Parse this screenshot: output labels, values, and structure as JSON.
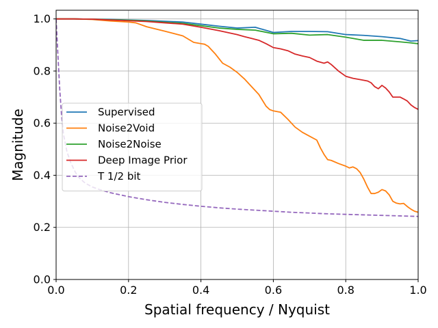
{
  "chart_data": {
    "type": "line",
    "title": "",
    "xlabel": "Spatial frequency / Nyquist",
    "ylabel": "Magnitude",
    "xlim": [
      0,
      1
    ],
    "ylim": [
      0,
      1.0333
    ],
    "xticks": [
      0,
      0.2,
      0.4,
      0.6,
      0.8,
      1.0
    ],
    "xtick_labels": [
      "0.0",
      "0.2",
      "0.4",
      "0.6",
      "0.8",
      "1.0"
    ],
    "yticks": [
      0,
      0.2,
      0.4,
      0.6,
      0.8,
      1.0
    ],
    "ytick_labels": [
      "0.0",
      "0.2",
      "0.4",
      "0.6",
      "0.8",
      "1.0"
    ],
    "grid": true,
    "legend_position": "center-left",
    "series": [
      {
        "name": "Supervised",
        "color": "#1f77b4",
        "dashed": false,
        "x": [
          0,
          0.05,
          0.1,
          0.15,
          0.2,
          0.25,
          0.3,
          0.35,
          0.4,
          0.45,
          0.5,
          0.55,
          0.6,
          0.65,
          0.7,
          0.75,
          0.8,
          0.85,
          0.9,
          0.95,
          0.98,
          1.0
        ],
        "y": [
          1.0,
          1.0,
          0.999,
          0.998,
          0.996,
          0.994,
          0.991,
          0.988,
          0.98,
          0.972,
          0.965,
          0.968,
          0.948,
          0.952,
          0.952,
          0.951,
          0.94,
          0.937,
          0.932,
          0.925,
          0.915,
          0.917
        ]
      },
      {
        "name": "Noise2Void",
        "color": "#ff7f0e",
        "dashed": false,
        "x": [
          0,
          0.05,
          0.1,
          0.15,
          0.2,
          0.22,
          0.25,
          0.3,
          0.35,
          0.38,
          0.4,
          0.41,
          0.42,
          0.44,
          0.46,
          0.48,
          0.5,
          0.52,
          0.54,
          0.56,
          0.58,
          0.59,
          0.6,
          0.62,
          0.64,
          0.66,
          0.68,
          0.7,
          0.72,
          0.73,
          0.74,
          0.75,
          0.76,
          0.78,
          0.8,
          0.81,
          0.82,
          0.83,
          0.84,
          0.85,
          0.86,
          0.87,
          0.88,
          0.89,
          0.9,
          0.91,
          0.92,
          0.93,
          0.94,
          0.95,
          0.96,
          0.97,
          0.98,
          0.99,
          1.0
        ],
        "y": [
          1.0,
          1.0,
          0.998,
          0.992,
          0.988,
          0.985,
          0.97,
          0.953,
          0.935,
          0.91,
          0.905,
          0.903,
          0.895,
          0.865,
          0.83,
          0.815,
          0.795,
          0.77,
          0.74,
          0.71,
          0.665,
          0.652,
          0.647,
          0.642,
          0.615,
          0.585,
          0.565,
          0.55,
          0.535,
          0.505,
          0.48,
          0.46,
          0.457,
          0.445,
          0.435,
          0.428,
          0.432,
          0.425,
          0.41,
          0.385,
          0.355,
          0.33,
          0.33,
          0.335,
          0.345,
          0.34,
          0.325,
          0.3,
          0.293,
          0.29,
          0.292,
          0.28,
          0.27,
          0.262,
          0.258
        ]
      },
      {
        "name": "Noise2Noise",
        "color": "#2ca02c",
        "dashed": false,
        "x": [
          0,
          0.05,
          0.1,
          0.15,
          0.2,
          0.25,
          0.3,
          0.35,
          0.4,
          0.45,
          0.5,
          0.55,
          0.6,
          0.65,
          0.7,
          0.75,
          0.8,
          0.85,
          0.9,
          0.95,
          0.98,
          1.0
        ],
        "y": [
          1.0,
          1.0,
          0.999,
          0.997,
          0.995,
          0.992,
          0.987,
          0.983,
          0.974,
          0.965,
          0.96,
          0.957,
          0.943,
          0.945,
          0.938,
          0.94,
          0.93,
          0.918,
          0.918,
          0.912,
          0.908,
          0.905
        ]
      },
      {
        "name": "Deep Image Prior",
        "color": "#d62728",
        "dashed": false,
        "x": [
          0,
          0.05,
          0.1,
          0.15,
          0.2,
          0.25,
          0.3,
          0.35,
          0.4,
          0.45,
          0.5,
          0.52,
          0.54,
          0.56,
          0.58,
          0.6,
          0.62,
          0.64,
          0.66,
          0.68,
          0.7,
          0.72,
          0.74,
          0.75,
          0.76,
          0.78,
          0.8,
          0.82,
          0.84,
          0.86,
          0.87,
          0.88,
          0.89,
          0.9,
          0.91,
          0.92,
          0.93,
          0.94,
          0.95,
          0.96,
          0.97,
          0.98,
          0.99,
          1.0
        ],
        "y": [
          1.0,
          1.0,
          0.999,
          0.996,
          0.993,
          0.99,
          0.985,
          0.98,
          0.968,
          0.955,
          0.94,
          0.932,
          0.925,
          0.918,
          0.905,
          0.89,
          0.885,
          0.878,
          0.865,
          0.858,
          0.852,
          0.838,
          0.83,
          0.835,
          0.825,
          0.8,
          0.78,
          0.772,
          0.767,
          0.762,
          0.755,
          0.74,
          0.732,
          0.745,
          0.735,
          0.72,
          0.7,
          0.7,
          0.7,
          0.693,
          0.685,
          0.67,
          0.66,
          0.653
        ]
      },
      {
        "name": "T 1/2 bit",
        "color": "#9467bd",
        "dashed": true,
        "x": [
          0,
          0.005,
          0.01,
          0.015,
          0.02,
          0.03,
          0.04,
          0.05,
          0.06,
          0.08,
          0.1,
          0.12,
          0.15,
          0.2,
          0.25,
          0.3,
          0.35,
          0.4,
          0.45,
          0.5,
          0.55,
          0.6,
          0.65,
          0.7,
          0.75,
          0.8,
          0.85,
          0.9,
          0.95,
          1.0
        ],
        "y": [
          1.0,
          0.86,
          0.73,
          0.63,
          0.56,
          0.49,
          0.45,
          0.42,
          0.395,
          0.37,
          0.355,
          0.345,
          0.333,
          0.318,
          0.306,
          0.296,
          0.288,
          0.281,
          0.275,
          0.27,
          0.266,
          0.262,
          0.258,
          0.255,
          0.252,
          0.25,
          0.248,
          0.246,
          0.244,
          0.242
        ]
      }
    ]
  }
}
